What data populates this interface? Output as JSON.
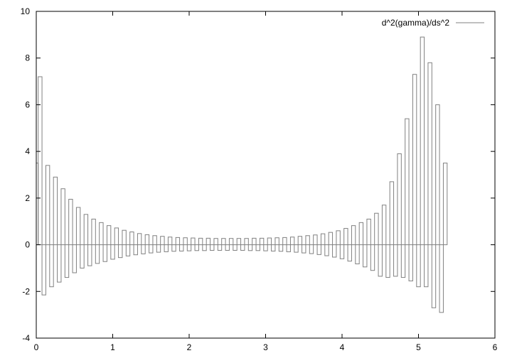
{
  "chart_data": {
    "type": "bar",
    "style": "gnuplot boxes (unfilled)",
    "series": [
      {
        "name": "d^2(gamma)/ds^2",
        "color": "#808080",
        "x": [
          0,
          0.05,
          0.1,
          0.15,
          0.2,
          0.25,
          0.3,
          0.35,
          0.4,
          0.45,
          0.5,
          0.55,
          0.6,
          0.65,
          0.7,
          0.75,
          0.8,
          0.85,
          0.9,
          0.95,
          1.0,
          1.05,
          1.1,
          1.15,
          1.2,
          1.25,
          1.3,
          1.35,
          1.4,
          1.45,
          1.5,
          1.55,
          1.6,
          1.65,
          1.7,
          1.75,
          1.8,
          1.85,
          1.9,
          1.95,
          2.0,
          2.05,
          2.1,
          2.15,
          2.2,
          2.25,
          2.3,
          2.35,
          2.4,
          2.45,
          2.5,
          2.55,
          2.6,
          2.65,
          2.7,
          2.75,
          2.8,
          2.85,
          2.9,
          2.95,
          3.0,
          3.05,
          3.1,
          3.15,
          3.2,
          3.25,
          3.3,
          3.35,
          3.4,
          3.45,
          3.5,
          3.55,
          3.6,
          3.65,
          3.7,
          3.75,
          3.8,
          3.85,
          3.9,
          3.95,
          4.0,
          4.05,
          4.1,
          4.15,
          4.2,
          4.25,
          4.3,
          4.35,
          4.4,
          4.45,
          4.5,
          4.55,
          4.6,
          4.65,
          4.7,
          4.75,
          4.8,
          4.85,
          4.9,
          4.95,
          5.0,
          5.05,
          5.1,
          5.15,
          5.2,
          5.25,
          5.3,
          5.35
        ],
        "values": [
          3.5,
          7.2,
          -2.15,
          3.4,
          -1.8,
          2.9,
          -1.6,
          2.4,
          -1.4,
          1.95,
          -1.2,
          1.6,
          -1.0,
          1.3,
          -0.9,
          1.1,
          -0.8,
          0.95,
          -0.72,
          0.82,
          -0.62,
          0.72,
          -0.55,
          0.62,
          -0.48,
          0.55,
          -0.43,
          0.48,
          -0.39,
          0.43,
          -0.35,
          0.39,
          -0.32,
          0.36,
          -0.3,
          0.33,
          -0.28,
          0.31,
          -0.27,
          0.3,
          -0.26,
          0.29,
          -0.25,
          0.28,
          -0.25,
          0.28,
          -0.24,
          0.27,
          -0.24,
          0.27,
          -0.24,
          0.27,
          -0.24,
          0.27,
          -0.24,
          0.27,
          -0.25,
          0.28,
          -0.25,
          0.28,
          -0.26,
          0.29,
          -0.27,
          0.3,
          -0.28,
          0.31,
          -0.3,
          0.33,
          -0.32,
          0.36,
          -0.35,
          0.39,
          -0.38,
          0.42,
          -0.42,
          0.47,
          -0.47,
          0.53,
          -0.53,
          0.6,
          -0.6,
          0.7,
          -0.7,
          0.82,
          -0.82,
          0.95,
          -0.95,
          1.1,
          -1.1,
          1.35,
          -1.35,
          1.7,
          -1.4,
          2.7,
          -1.35,
          3.9,
          -1.4,
          5.4,
          -1.55,
          7.3,
          -1.8,
          8.9,
          -1.8,
          7.8,
          -2.7,
          6.0,
          -2.9,
          3.5
        ]
      }
    ],
    "xlim": [
      0,
      6
    ],
    "ylim": [
      -4,
      10
    ],
    "xticks": [
      0,
      1,
      2,
      3,
      4,
      5,
      6
    ],
    "yticks": [
      -4,
      -2,
      0,
      2,
      4,
      6,
      8,
      10
    ],
    "box_width": 0.05,
    "grid": false,
    "legend_position": "top-right",
    "title": "",
    "xlabel": "",
    "ylabel": ""
  }
}
